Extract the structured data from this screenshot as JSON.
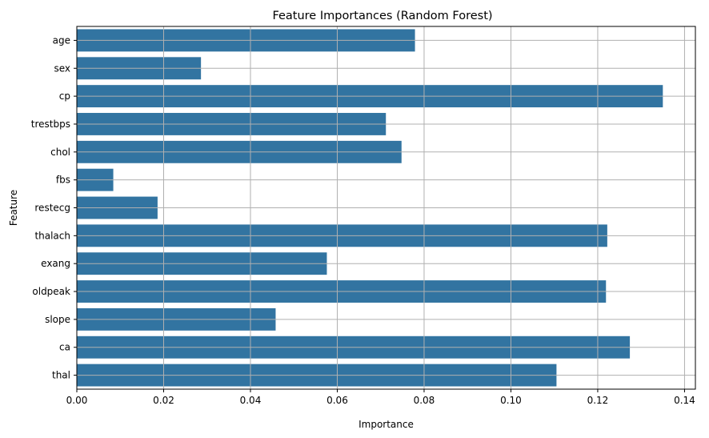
{
  "chart_data": {
    "type": "bar",
    "orientation": "horizontal",
    "title": "Feature Importances (Random Forest)",
    "xlabel": "Importance",
    "ylabel": "Feature",
    "categories": [
      "age",
      "sex",
      "cp",
      "trestbps",
      "chol",
      "fbs",
      "restecg",
      "thalach",
      "exang",
      "oldpeak",
      "slope",
      "ca",
      "thal"
    ],
    "values": [
      0.0779,
      0.0286,
      0.135,
      0.0712,
      0.0748,
      0.0084,
      0.0186,
      0.1222,
      0.0576,
      0.1219,
      0.0458,
      0.1274,
      0.1105
    ],
    "xlim": [
      0,
      0.1425
    ],
    "xticks": [
      0.0,
      0.02,
      0.04,
      0.06,
      0.08,
      0.1,
      0.12,
      0.14
    ],
    "xtick_labels": [
      "0.00",
      "0.02",
      "0.04",
      "0.06",
      "0.08",
      "0.10",
      "0.12",
      "0.14"
    ],
    "grid": true,
    "legend": "none",
    "bar_color": "#3274a1",
    "grid_color": "#b0b0b0"
  }
}
